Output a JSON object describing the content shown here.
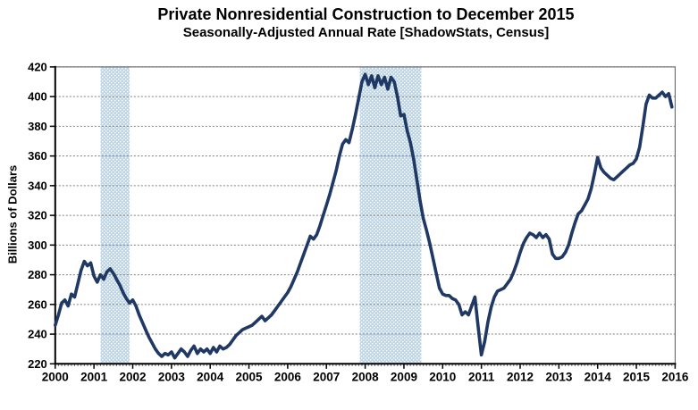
{
  "header": {
    "title": "Private Nonresidential Construction to December 2015",
    "subtitle": "Seasonally-Adjusted Annual Rate [ShadowStats, Census]"
  },
  "chart_data": {
    "type": "line",
    "title": "Private Nonresidential Construction to December 2015",
    "subtitle": "Seasonally-Adjusted Annual Rate [ShadowStats, Census]",
    "xlabel": "",
    "ylabel": "Billions of Dollars",
    "ylim": [
      220,
      420
    ],
    "y_ticks": [
      220,
      240,
      260,
      280,
      300,
      320,
      340,
      360,
      380,
      400,
      420
    ],
    "x_ticks": [
      2000,
      2001,
      2002,
      2003,
      2004,
      2005,
      2006,
      2007,
      2008,
      2009,
      2010,
      2011,
      2012,
      2013,
      2014,
      2015,
      2016
    ],
    "xlim": [
      2000,
      2016
    ],
    "grid": "horizontal-dashed",
    "legend": "none",
    "recession_bands": [
      {
        "from": 2001.17,
        "to": 2001.92
      },
      {
        "from": 2007.86,
        "to": 2009.45
      }
    ],
    "series": [
      {
        "name": "Private Nonresidential Construction (SAAR)",
        "start_year": 2000,
        "interval_months": 1,
        "values": [
          246,
          253,
          261,
          263,
          259,
          267,
          265,
          274,
          283,
          289,
          286,
          288,
          279,
          275,
          280,
          277,
          282,
          284,
          281,
          277,
          273,
          268,
          264,
          261,
          263,
          259,
          253,
          248,
          243,
          238,
          234,
          230,
          227,
          225,
          227,
          226,
          228,
          224,
          227,
          230,
          228,
          225,
          229,
          232,
          227,
          230,
          228,
          230,
          227,
          231,
          228,
          232,
          230,
          231,
          233,
          236,
          239,
          241,
          243,
          244,
          245,
          246,
          248,
          250,
          252,
          249,
          251,
          253,
          256,
          259,
          262,
          265,
          268,
          272,
          277,
          282,
          288,
          294,
          300,
          306,
          304,
          307,
          313,
          320,
          327,
          334,
          342,
          350,
          360,
          368,
          371,
          369,
          378,
          388,
          399,
          410,
          415,
          408,
          414,
          406,
          414,
          408,
          413,
          405,
          413,
          410,
          400,
          387,
          388,
          377,
          369,
          358,
          344,
          330,
          318,
          310,
          301,
          291,
          281,
          271,
          267,
          266,
          266,
          264,
          263,
          260,
          253,
          255,
          253,
          259,
          265,
          245,
          226,
          235,
          248,
          258,
          265,
          269,
          270,
          271,
          274,
          277,
          282,
          288,
          295,
          301,
          305,
          308,
          307,
          305,
          308,
          305,
          307,
          304,
          294,
          291,
          291,
          292,
          295,
          300,
          308,
          315,
          321,
          323,
          327,
          331,
          338,
          348,
          359,
          352,
          349,
          347,
          345,
          344,
          346,
          348,
          350,
          352,
          354,
          355,
          358,
          366,
          380,
          395,
          401,
          399,
          399,
          401,
          403,
          400,
          402,
          393
        ]
      }
    ],
    "colors": {
      "line": "#1f3864",
      "band_base": "#bdd5ec",
      "band_dot": "#ffffff",
      "grid": "#808080",
      "axis": "#000000",
      "border": "#595959",
      "background": "#ffffff"
    }
  }
}
